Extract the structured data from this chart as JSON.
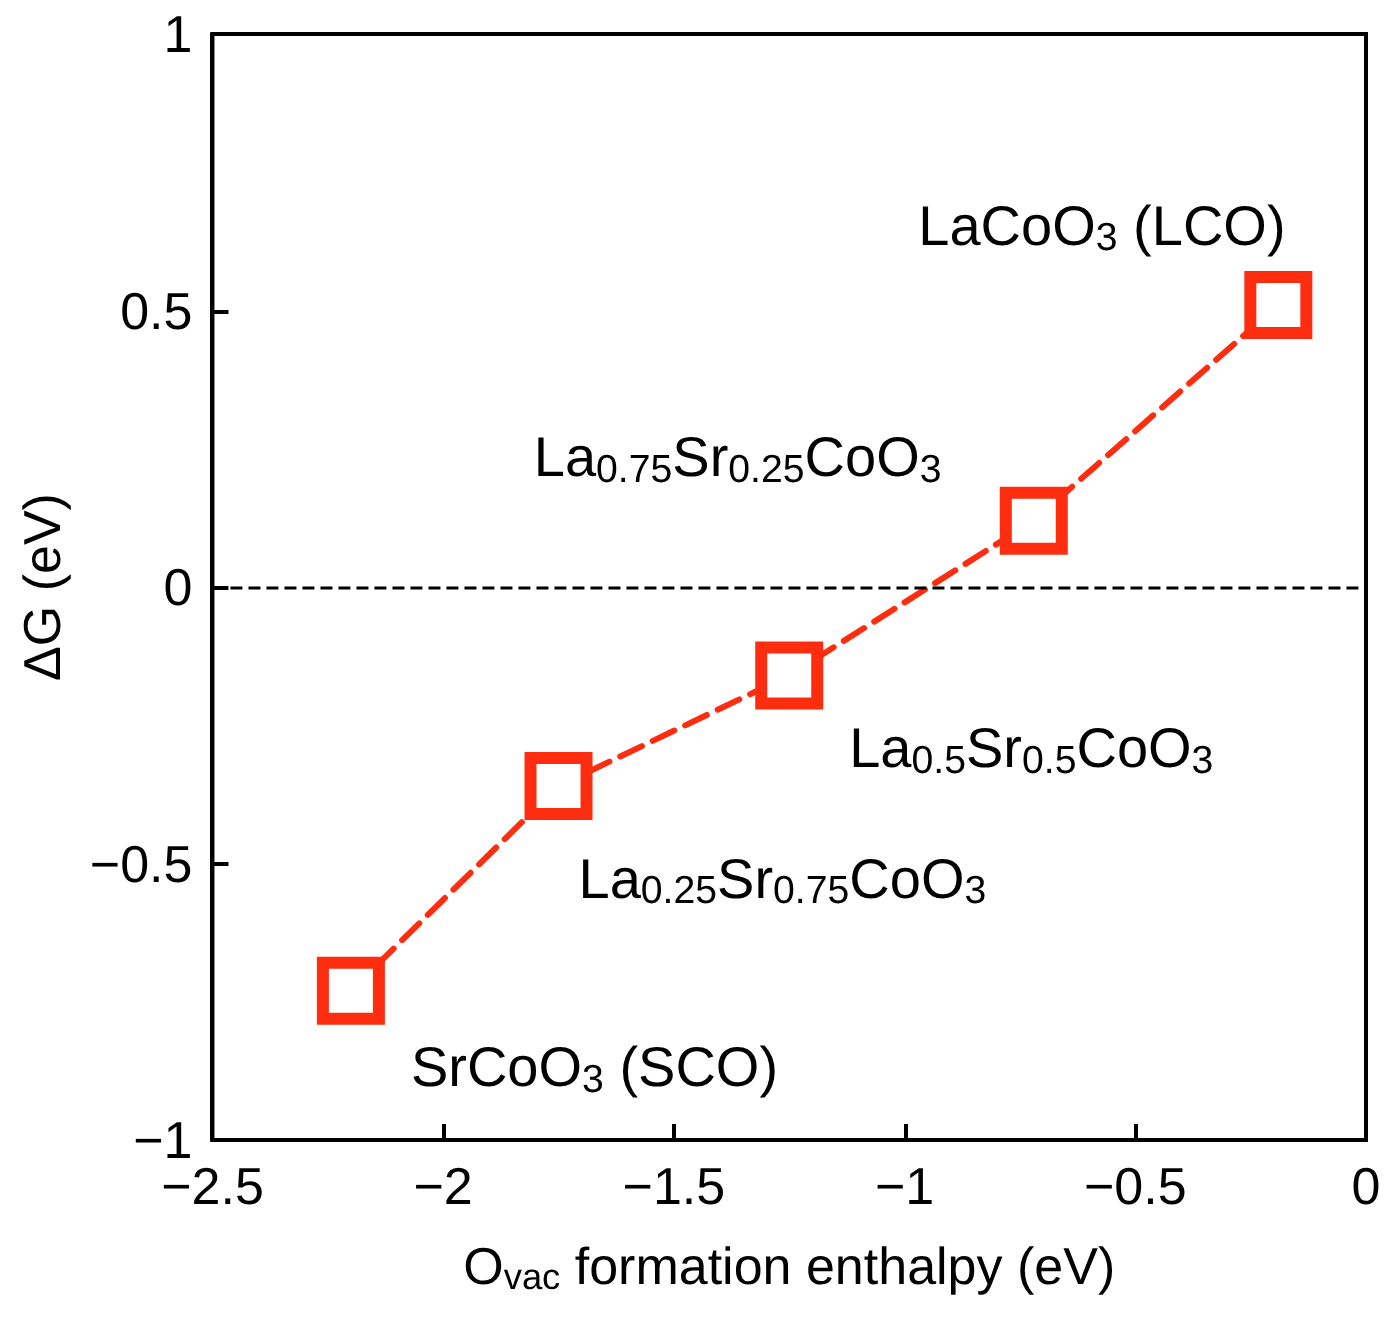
{
  "chart_data": {
    "type": "line",
    "xlabel": "O$_{vac}$ formation enthalpy (eV)",
    "ylabel": "ΔG (eV)",
    "x": [
      -2.2,
      -1.75,
      -1.25,
      -0.72,
      -0.19
    ],
    "series": [
      {
        "color": "#ff2d0f",
        "values": [
          -0.73,
          -0.36,
          -0.16,
          0.12,
          0.51
        ]
      }
    ],
    "xlim": [
      -2.5,
      0
    ],
    "xticks": [
      -2.5,
      -2,
      -1.5,
      -1,
      -0.5,
      0
    ],
    "ylim": [
      -1,
      1
    ],
    "yticks": [
      -1,
      -0.5,
      0,
      0.5,
      1
    ],
    "marker": "square",
    "line_style": "dashed",
    "grid": false,
    "ref_lines": [
      {
        "axis": "y",
        "value": 0,
        "color": "#000000",
        "line_style": "dashed"
      }
    ],
    "annotations": [
      {
        "text": "SrCoO$_{3}$ (SCO)",
        "x": -2.2,
        "y": -0.73
      },
      {
        "text": "La$_{0.25}$Sr$_{0.75}$CoO$_{3}$",
        "x": -1.75,
        "y": -0.36
      },
      {
        "text": "La$_{0.5}$Sr$_{0.5}$CoO$_{3}$",
        "x": -1.25,
        "y": -0.16
      },
      {
        "text": "La$_{0.75}$Sr$_{0.25}$CoO$_{3}$",
        "x": -0.72,
        "y": 0.12
      },
      {
        "text": "LaCoO$_{3}$ (LCO)",
        "x": -0.19,
        "y": 0.51
      }
    ]
  }
}
